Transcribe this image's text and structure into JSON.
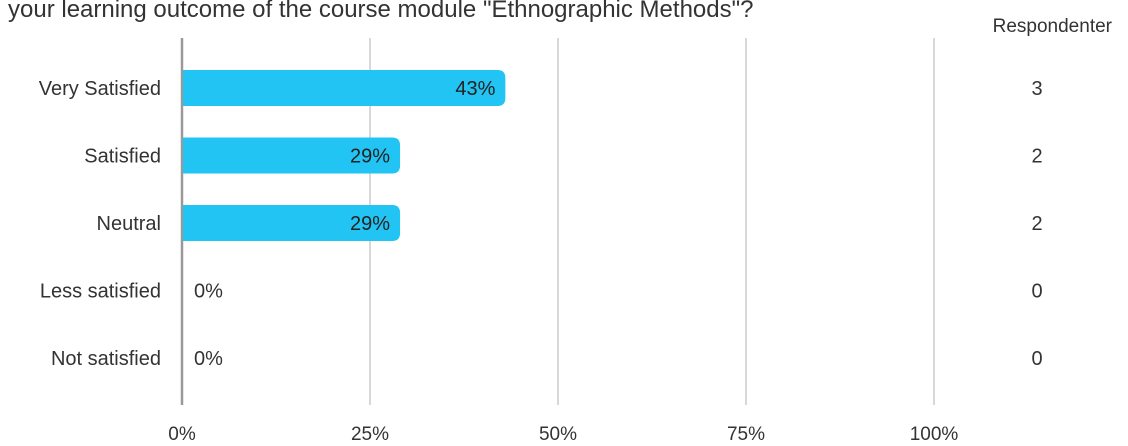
{
  "chart_data": {
    "type": "bar",
    "orientation": "horizontal",
    "title": "your learning outcome of the course module \"Ethnographic Methods\"?",
    "categories": [
      "Very Satisfied",
      "Satisfied",
      "Neutral",
      "Less satisfied",
      "Not satisfied"
    ],
    "values": [
      43,
      29,
      29,
      0,
      0
    ],
    "value_labels": [
      "43%",
      "29%",
      "29%",
      "0%",
      "0%"
    ],
    "respondents_header": "Respondenter",
    "respondents": [
      "3",
      "2",
      "2",
      "0",
      "0"
    ],
    "x_ticks": [
      "0%",
      "25%",
      "50%",
      "75%",
      "100%"
    ],
    "xlim": [
      0,
      100
    ],
    "xlabel": "",
    "ylabel": "",
    "grid": true,
    "bar_color": "#21c4f2"
  }
}
